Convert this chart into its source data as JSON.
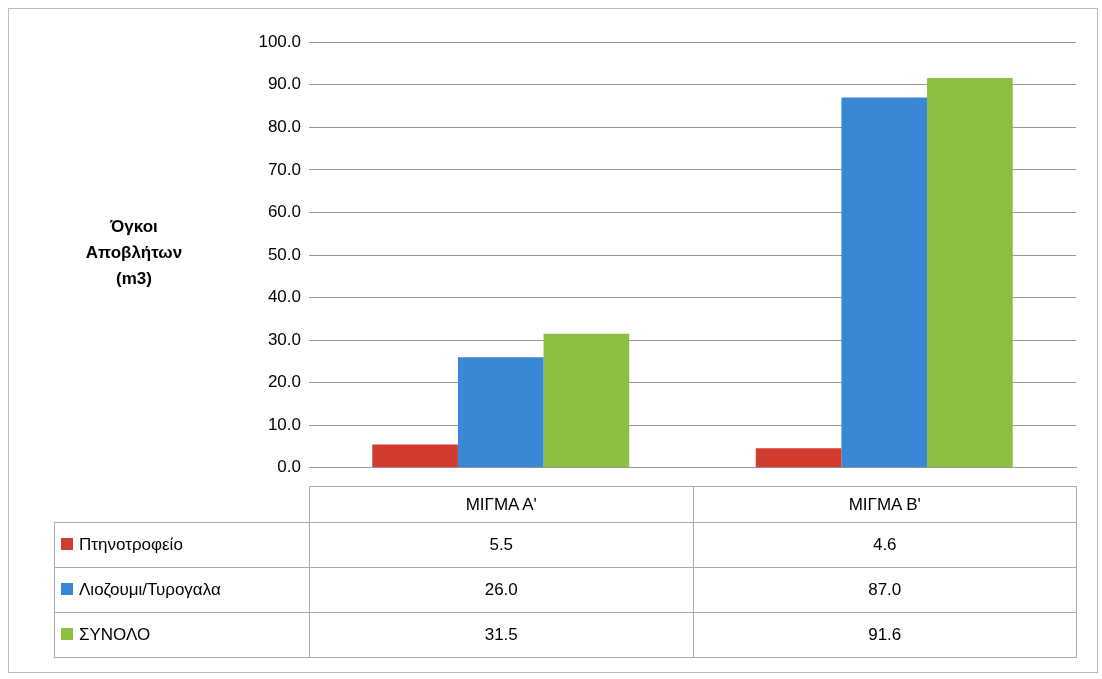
{
  "chart_data": {
    "type": "bar",
    "ylabel": "Όγκοι Αποβλήτων (m3)",
    "categories": [
      "ΜΙΓΜΑ Α'",
      "ΜΙΓΜΑ Β'"
    ],
    "series": [
      {
        "name": "Πτηνοτροφείο",
        "color": "#d23b30",
        "values": [
          5.5,
          4.6
        ],
        "value_labels": [
          "5.5",
          "4.6"
        ]
      },
      {
        "name": "Λιοζουμι/Τυρογαλα",
        "color": "#3a87d6",
        "values": [
          26.0,
          87.0
        ],
        "value_labels": [
          "26.0",
          "87.0"
        ]
      },
      {
        "name": "ΣΥΝΟΛΟ",
        "color": "#8cbf3f",
        "values": [
          31.5,
          91.6
        ],
        "value_labels": [
          "31.5",
          "91.6"
        ]
      }
    ],
    "ylim": [
      0,
      100
    ],
    "yticks": [
      {
        "value": 0,
        "label": "0.0"
      },
      {
        "value": 10,
        "label": "10.0"
      },
      {
        "value": 20,
        "label": "20.0"
      },
      {
        "value": 30,
        "label": "30.0"
      },
      {
        "value": 40,
        "label": "40.0"
      },
      {
        "value": 50,
        "label": "50.0"
      },
      {
        "value": 60,
        "label": "60.0"
      },
      {
        "value": 70,
        "label": "70.0"
      },
      {
        "value": 80,
        "label": "80.0"
      },
      {
        "value": 90,
        "label": "90.0"
      },
      {
        "value": 100,
        "label": "100.0"
      }
    ],
    "grid": "y",
    "legend": "bottom"
  }
}
